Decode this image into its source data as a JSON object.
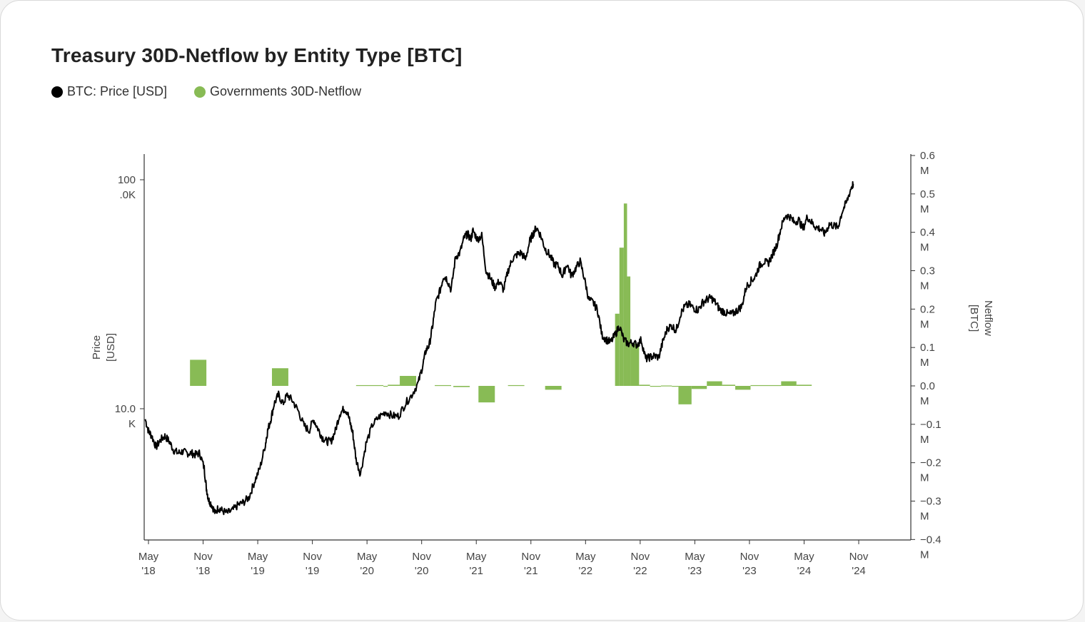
{
  "title": "Treasury 30D-Netflow by Entity Type [BTC]",
  "legend": [
    {
      "label": "BTC: Price [USD]",
      "color": "#000000"
    },
    {
      "label": "Governments 30D-Netflow",
      "color": "#88bb55"
    }
  ],
  "chart_data": {
    "type": "line+bar",
    "x_ticks": [
      {
        "l1": "May",
        "l2": "'18",
        "t": 2018.33
      },
      {
        "l1": "Nov",
        "l2": "'18",
        "t": 2018.83
      },
      {
        "l1": "May",
        "l2": "'19",
        "t": 2019.33
      },
      {
        "l1": "Nov",
        "l2": "'19",
        "t": 2019.83
      },
      {
        "l1": "May",
        "l2": "'20",
        "t": 2020.33
      },
      {
        "l1": "Nov",
        "l2": "'20",
        "t": 2020.83
      },
      {
        "l1": "May",
        "l2": "'21",
        "t": 2021.33
      },
      {
        "l1": "Nov",
        "l2": "'21",
        "t": 2021.83
      },
      {
        "l1": "May",
        "l2": "'22",
        "t": 2022.33
      },
      {
        "l1": "Nov",
        "l2": "'22",
        "t": 2022.83
      },
      {
        "l1": "May",
        "l2": "'23",
        "t": 2023.33
      },
      {
        "l1": "Nov",
        "l2": "'23",
        "t": 2023.83
      },
      {
        "l1": "May",
        "l2": "'24",
        "t": 2024.33
      },
      {
        "l1": "Nov",
        "l2": "'24",
        "t": 2024.83
      }
    ],
    "x_range": [
      2018.3,
      2024.78
    ],
    "left_axis": {
      "label": "Price [USD]",
      "scale": "log",
      "range": [
        3000,
        150000
      ],
      "ticks": [
        {
          "l1": "100",
          "l2": ".0K",
          "v": 100000
        },
        {
          "l1": "10.0",
          "l2": "K",
          "v": 10000
        }
      ]
    },
    "right_axis": {
      "label": "Netflow [BTC]",
      "range": [
        -0.4,
        0.6
      ],
      "ticks": [
        {
          "l1": "0.6",
          "l2": "M",
          "v": 0.6
        },
        {
          "l1": "0.5",
          "l2": "M",
          "v": 0.5
        },
        {
          "l1": "0.4",
          "l2": "M",
          "v": 0.4
        },
        {
          "l1": "0.3",
          "l2": "M",
          "v": 0.3
        },
        {
          "l1": "0.2",
          "l2": "M",
          "v": 0.2
        },
        {
          "l1": "0.1",
          "l2": "M",
          "v": 0.1
        },
        {
          "l1": "0.0",
          "l2": "M",
          "v": 0.0
        },
        {
          "l1": "−0.1",
          "l2": "M",
          "v": -0.1
        },
        {
          "l1": "−0.2",
          "l2": "M",
          "v": -0.2
        },
        {
          "l1": "−0.3",
          "l2": "M",
          "v": -0.3
        },
        {
          "l1": "−0.4",
          "l2": "M",
          "v": -0.4
        }
      ]
    },
    "price_series": {
      "name": "BTC: Price [USD]",
      "t": [
        2018.3,
        2018.33,
        2018.36,
        2018.4,
        2018.44,
        2018.48,
        2018.52,
        2018.56,
        2018.6,
        2018.64,
        2018.68,
        2018.72,
        2018.76,
        2018.8,
        2018.84,
        2018.86,
        2018.88,
        2018.91,
        2018.94,
        2018.97,
        2019.0,
        2019.05,
        2019.1,
        2019.15,
        2019.2,
        2019.25,
        2019.3,
        2019.35,
        2019.4,
        2019.42,
        2019.45,
        2019.48,
        2019.52,
        2019.56,
        2019.6,
        2019.65,
        2019.7,
        2019.75,
        2019.8,
        2019.84,
        2019.88,
        2019.92,
        2019.96,
        2020.0,
        2020.04,
        2020.08,
        2020.12,
        2020.15,
        2020.18,
        2020.2,
        2020.23,
        2020.27,
        2020.32,
        2020.38,
        2020.44,
        2020.5,
        2020.56,
        2020.62,
        2020.68,
        2020.74,
        2020.8,
        2020.84,
        2020.87,
        2020.9,
        2020.93,
        2020.96,
        2021.0,
        2021.03,
        2021.06,
        2021.1,
        2021.14,
        2021.18,
        2021.22,
        2021.25,
        2021.28,
        2021.3,
        2021.34,
        2021.38,
        2021.42,
        2021.46,
        2021.5,
        2021.54,
        2021.58,
        2021.62,
        2021.66,
        2021.7,
        2021.74,
        2021.78,
        2021.82,
        2021.85,
        2021.88,
        2021.92,
        2021.96,
        2022.0,
        2022.04,
        2022.08,
        2022.12,
        2022.16,
        2022.2,
        2022.24,
        2022.28,
        2022.32,
        2022.36,
        2022.4,
        2022.44,
        2022.48,
        2022.52,
        2022.56,
        2022.6,
        2022.64,
        2022.68,
        2022.72,
        2022.76,
        2022.8,
        2022.84,
        2022.88,
        2022.92,
        2022.96,
        2023.0,
        2023.04,
        2023.08,
        2023.12,
        2023.16,
        2023.2,
        2023.24,
        2023.28,
        2023.32,
        2023.36,
        2023.4,
        2023.44,
        2023.48,
        2023.52,
        2023.56,
        2023.6,
        2023.64,
        2023.68,
        2023.72,
        2023.76,
        2023.8,
        2023.84,
        2023.88,
        2023.92,
        2023.96,
        2024.0,
        2024.04,
        2024.08,
        2024.12,
        2024.16,
        2024.2,
        2024.24,
        2024.28,
        2024.32,
        2024.36,
        2024.4,
        2024.44,
        2024.48,
        2024.52,
        2024.56,
        2024.6,
        2024.64,
        2024.68,
        2024.72,
        2024.76,
        2024.78
      ],
      "v": [
        9000,
        8000,
        7600,
        6800,
        7300,
        7600,
        7200,
        6600,
        6400,
        6500,
        6400,
        6400,
        6300,
        6400,
        5500,
        4500,
        4000,
        3800,
        3500,
        3700,
        3600,
        3500,
        3600,
        3800,
        3900,
        4100,
        4800,
        5500,
        7000,
        8000,
        9000,
        10500,
        11500,
        10500,
        11500,
        10800,
        9800,
        8500,
        8000,
        9000,
        8200,
        7500,
        7200,
        7200,
        8000,
        9500,
        10000,
        9700,
        8500,
        7800,
        6000,
        5200,
        7000,
        8500,
        9200,
        9700,
        9300,
        9300,
        10500,
        11500,
        13000,
        15500,
        18000,
        19000,
        23000,
        29000,
        33000,
        38000,
        37000,
        33000,
        46000,
        48000,
        56000,
        58000,
        55000,
        60000,
        55000,
        57000,
        40000,
        37000,
        34000,
        36000,
        33000,
        40000,
        45000,
        47000,
        48000,
        45000,
        54000,
        58000,
        62000,
        57000,
        50000,
        47000,
        43000,
        42000,
        38000,
        43000,
        38000,
        41000,
        44000,
        37000,
        30000,
        29000,
        27000,
        21000,
        20000,
        19500,
        21000,
        23000,
        20000,
        19200,
        19500,
        19000,
        20000,
        16500,
        16800,
        17000,
        16800,
        19800,
        22500,
        23000,
        22000,
        26000,
        28000,
        28500,
        27500,
        27000,
        29000,
        30000,
        30500,
        29000,
        27000,
        26500,
        25800,
        26000,
        27000,
        28000,
        34000,
        36000,
        37500,
        42000,
        44000,
        43000,
        47000,
        52000,
        62000,
        70000,
        69000,
        65000,
        67000,
        61000,
        69000,
        65000,
        62000,
        61000,
        58000,
        64000,
        63000,
        62000,
        73000,
        80000,
        92000,
        96000,
        98000,
        94000,
        101000
      ]
    },
    "netflow_bars": [
      {
        "t0": 2018.71,
        "t1": 2018.86,
        "v": 0.068
      },
      {
        "t0": 2019.46,
        "t1": 2019.61,
        "v": 0.046
      },
      {
        "t0": 2020.23,
        "t1": 2020.48,
        "v": 0.002
      },
      {
        "t0": 2020.48,
        "t1": 2020.52,
        "v": 0.0
      },
      {
        "t0": 2020.52,
        "t1": 2020.63,
        "v": 0.003
      },
      {
        "t0": 2020.63,
        "t1": 2020.78,
        "v": 0.026
      },
      {
        "t0": 2020.95,
        "t1": 2021.1,
        "v": 0.002
      },
      {
        "t0": 2021.12,
        "t1": 2021.27,
        "v": -0.003
      },
      {
        "t0": 2021.35,
        "t1": 2021.5,
        "v": -0.043
      },
      {
        "t0": 2021.62,
        "t1": 2021.77,
        "v": 0.002
      },
      {
        "t0": 2021.96,
        "t1": 2022.11,
        "v": -0.01
      },
      {
        "t0": 2022.6,
        "t1": 2022.64,
        "v": 0.188
      },
      {
        "t0": 2022.64,
        "t1": 2022.68,
        "v": 0.36
      },
      {
        "t0": 2022.68,
        "t1": 2022.71,
        "v": 0.475
      },
      {
        "t0": 2022.71,
        "t1": 2022.74,
        "v": 0.285
      },
      {
        "t0": 2022.74,
        "t1": 2022.82,
        "v": 0.11
      },
      {
        "t0": 2022.82,
        "t1": 2022.92,
        "v": 0.003
      },
      {
        "t0": 2022.92,
        "t1": 2023.02,
        "v": -0.002
      },
      {
        "t0": 2023.02,
        "t1": 2023.12,
        "v": 0.001
      },
      {
        "t0": 2023.12,
        "t1": 2023.18,
        "v": -0.002
      },
      {
        "t0": 2023.18,
        "t1": 2023.3,
        "v": -0.048
      },
      {
        "t0": 2023.3,
        "t1": 2023.44,
        "v": -0.008
      },
      {
        "t0": 2023.44,
        "t1": 2023.58,
        "v": 0.012
      },
      {
        "t0": 2023.58,
        "t1": 2023.7,
        "v": 0.003
      },
      {
        "t0": 2023.7,
        "t1": 2023.84,
        "v": -0.01
      },
      {
        "t0": 2023.84,
        "t1": 2024.12,
        "v": 0.002
      },
      {
        "t0": 2024.12,
        "t1": 2024.26,
        "v": 0.012
      },
      {
        "t0": 2024.26,
        "t1": 2024.4,
        "v": 0.003
      }
    ]
  }
}
